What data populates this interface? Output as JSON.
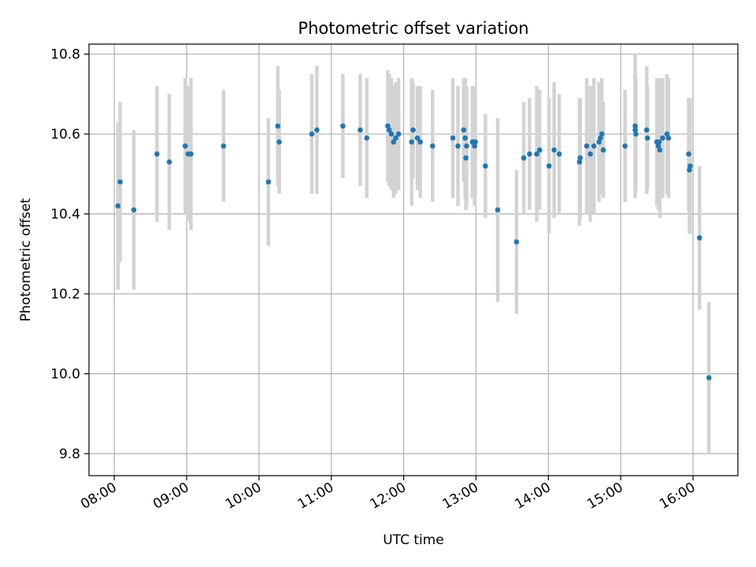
{
  "chart_data": {
    "type": "scatter",
    "title": "Photometric offset variation",
    "xlabel": "UTC time",
    "ylabel": "Photometric offset",
    "x_unit": "hours (UTC)",
    "xlim": [
      7.65,
      16.62
    ],
    "ylim": [
      9.745,
      10.825
    ],
    "x_ticks": [
      {
        "value": 8,
        "label": "08:00"
      },
      {
        "value": 9,
        "label": "09:00"
      },
      {
        "value": 10,
        "label": "10:00"
      },
      {
        "value": 11,
        "label": "11:00"
      },
      {
        "value": 12,
        "label": "12:00"
      },
      {
        "value": 13,
        "label": "13:00"
      },
      {
        "value": 14,
        "label": "14:00"
      },
      {
        "value": 15,
        "label": "15:00"
      },
      {
        "value": 16,
        "label": "16:00"
      }
    ],
    "y_ticks": [
      {
        "value": 9.8,
        "label": "9.8"
      },
      {
        "value": 10.0,
        "label": "10.0"
      },
      {
        "value": 10.2,
        "label": "10.2"
      },
      {
        "value": 10.4,
        "label": "10.4"
      },
      {
        "value": 10.6,
        "label": "10.6"
      },
      {
        "value": 10.8,
        "label": "10.8"
      }
    ],
    "grid": true,
    "x_tick_rotation_deg": 30,
    "point_color": "#1f77b4",
    "errorbar_color": "#d3d3d3",
    "series": [
      {
        "x": [
          8.05,
          8.08,
          8.27,
          8.59,
          8.76,
          8.98,
          9.02,
          9.06,
          9.51,
          10.13,
          10.26,
          10.28,
          10.73,
          10.8,
          11.16,
          11.4,
          11.49,
          11.78,
          11.8,
          11.83,
          11.86,
          11.89,
          11.93,
          12.11,
          12.13,
          12.19,
          12.23,
          12.4,
          12.68,
          12.75,
          12.83,
          12.85,
          12.86,
          12.87,
          12.95,
          12.98,
          12.99,
          13.13,
          13.3,
          13.56,
          13.66,
          13.74,
          13.84,
          13.88,
          14.01,
          14.08,
          14.15,
          14.43,
          14.44,
          14.53,
          14.58,
          14.63,
          14.7,
          14.72,
          14.74,
          14.76,
          15.06,
          15.2,
          15.2,
          15.21,
          15.36,
          15.37,
          15.5,
          15.52,
          15.53,
          15.54,
          15.58,
          15.64,
          15.66,
          15.94,
          15.95,
          15.96,
          16.09,
          16.22
        ],
        "y": [
          10.42,
          10.48,
          10.41,
          10.55,
          10.53,
          10.57,
          10.55,
          10.55,
          10.57,
          10.48,
          10.62,
          10.58,
          10.6,
          10.61,
          10.62,
          10.61,
          10.59,
          10.62,
          10.61,
          10.6,
          10.58,
          10.59,
          10.6,
          10.58,
          10.61,
          10.59,
          10.58,
          10.57,
          10.59,
          10.57,
          10.61,
          10.59,
          10.54,
          10.57,
          10.58,
          10.57,
          10.58,
          10.52,
          10.41,
          10.33,
          10.54,
          10.55,
          10.55,
          10.56,
          10.52,
          10.56,
          10.55,
          10.53,
          10.54,
          10.57,
          10.55,
          10.57,
          10.58,
          10.59,
          10.6,
          10.56,
          10.57,
          10.62,
          10.61,
          10.6,
          10.61,
          10.59,
          10.58,
          10.57,
          10.58,
          10.56,
          10.59,
          10.6,
          10.59,
          10.55,
          10.51,
          10.52,
          10.34,
          9.99
        ],
        "err": [
          0.21,
          0.2,
          0.2,
          0.17,
          0.17,
          0.17,
          0.17,
          0.19,
          0.14,
          0.16,
          0.15,
          0.13,
          0.15,
          0.16,
          0.13,
          0.14,
          0.15,
          0.14,
          0.14,
          0.14,
          0.14,
          0.14,
          0.14,
          0.16,
          0.12,
          0.13,
          0.14,
          0.14,
          0.15,
          0.15,
          0.13,
          0.15,
          0.13,
          0.15,
          0.14,
          0.15,
          0.13,
          0.13,
          0.23,
          0.18,
          0.14,
          0.14,
          0.17,
          0.15,
          0.17,
          0.17,
          0.15,
          0.16,
          0.15,
          0.17,
          0.17,
          0.17,
          0.15,
          0.14,
          0.14,
          0.12,
          0.14,
          0.18,
          0.14,
          0.14,
          0.16,
          0.13,
          0.16,
          0.16,
          0.16,
          0.17,
          0.15,
          0.15,
          0.15,
          0.14,
          0.16,
          0.17,
          0.18,
          0.19
        ]
      }
    ]
  }
}
